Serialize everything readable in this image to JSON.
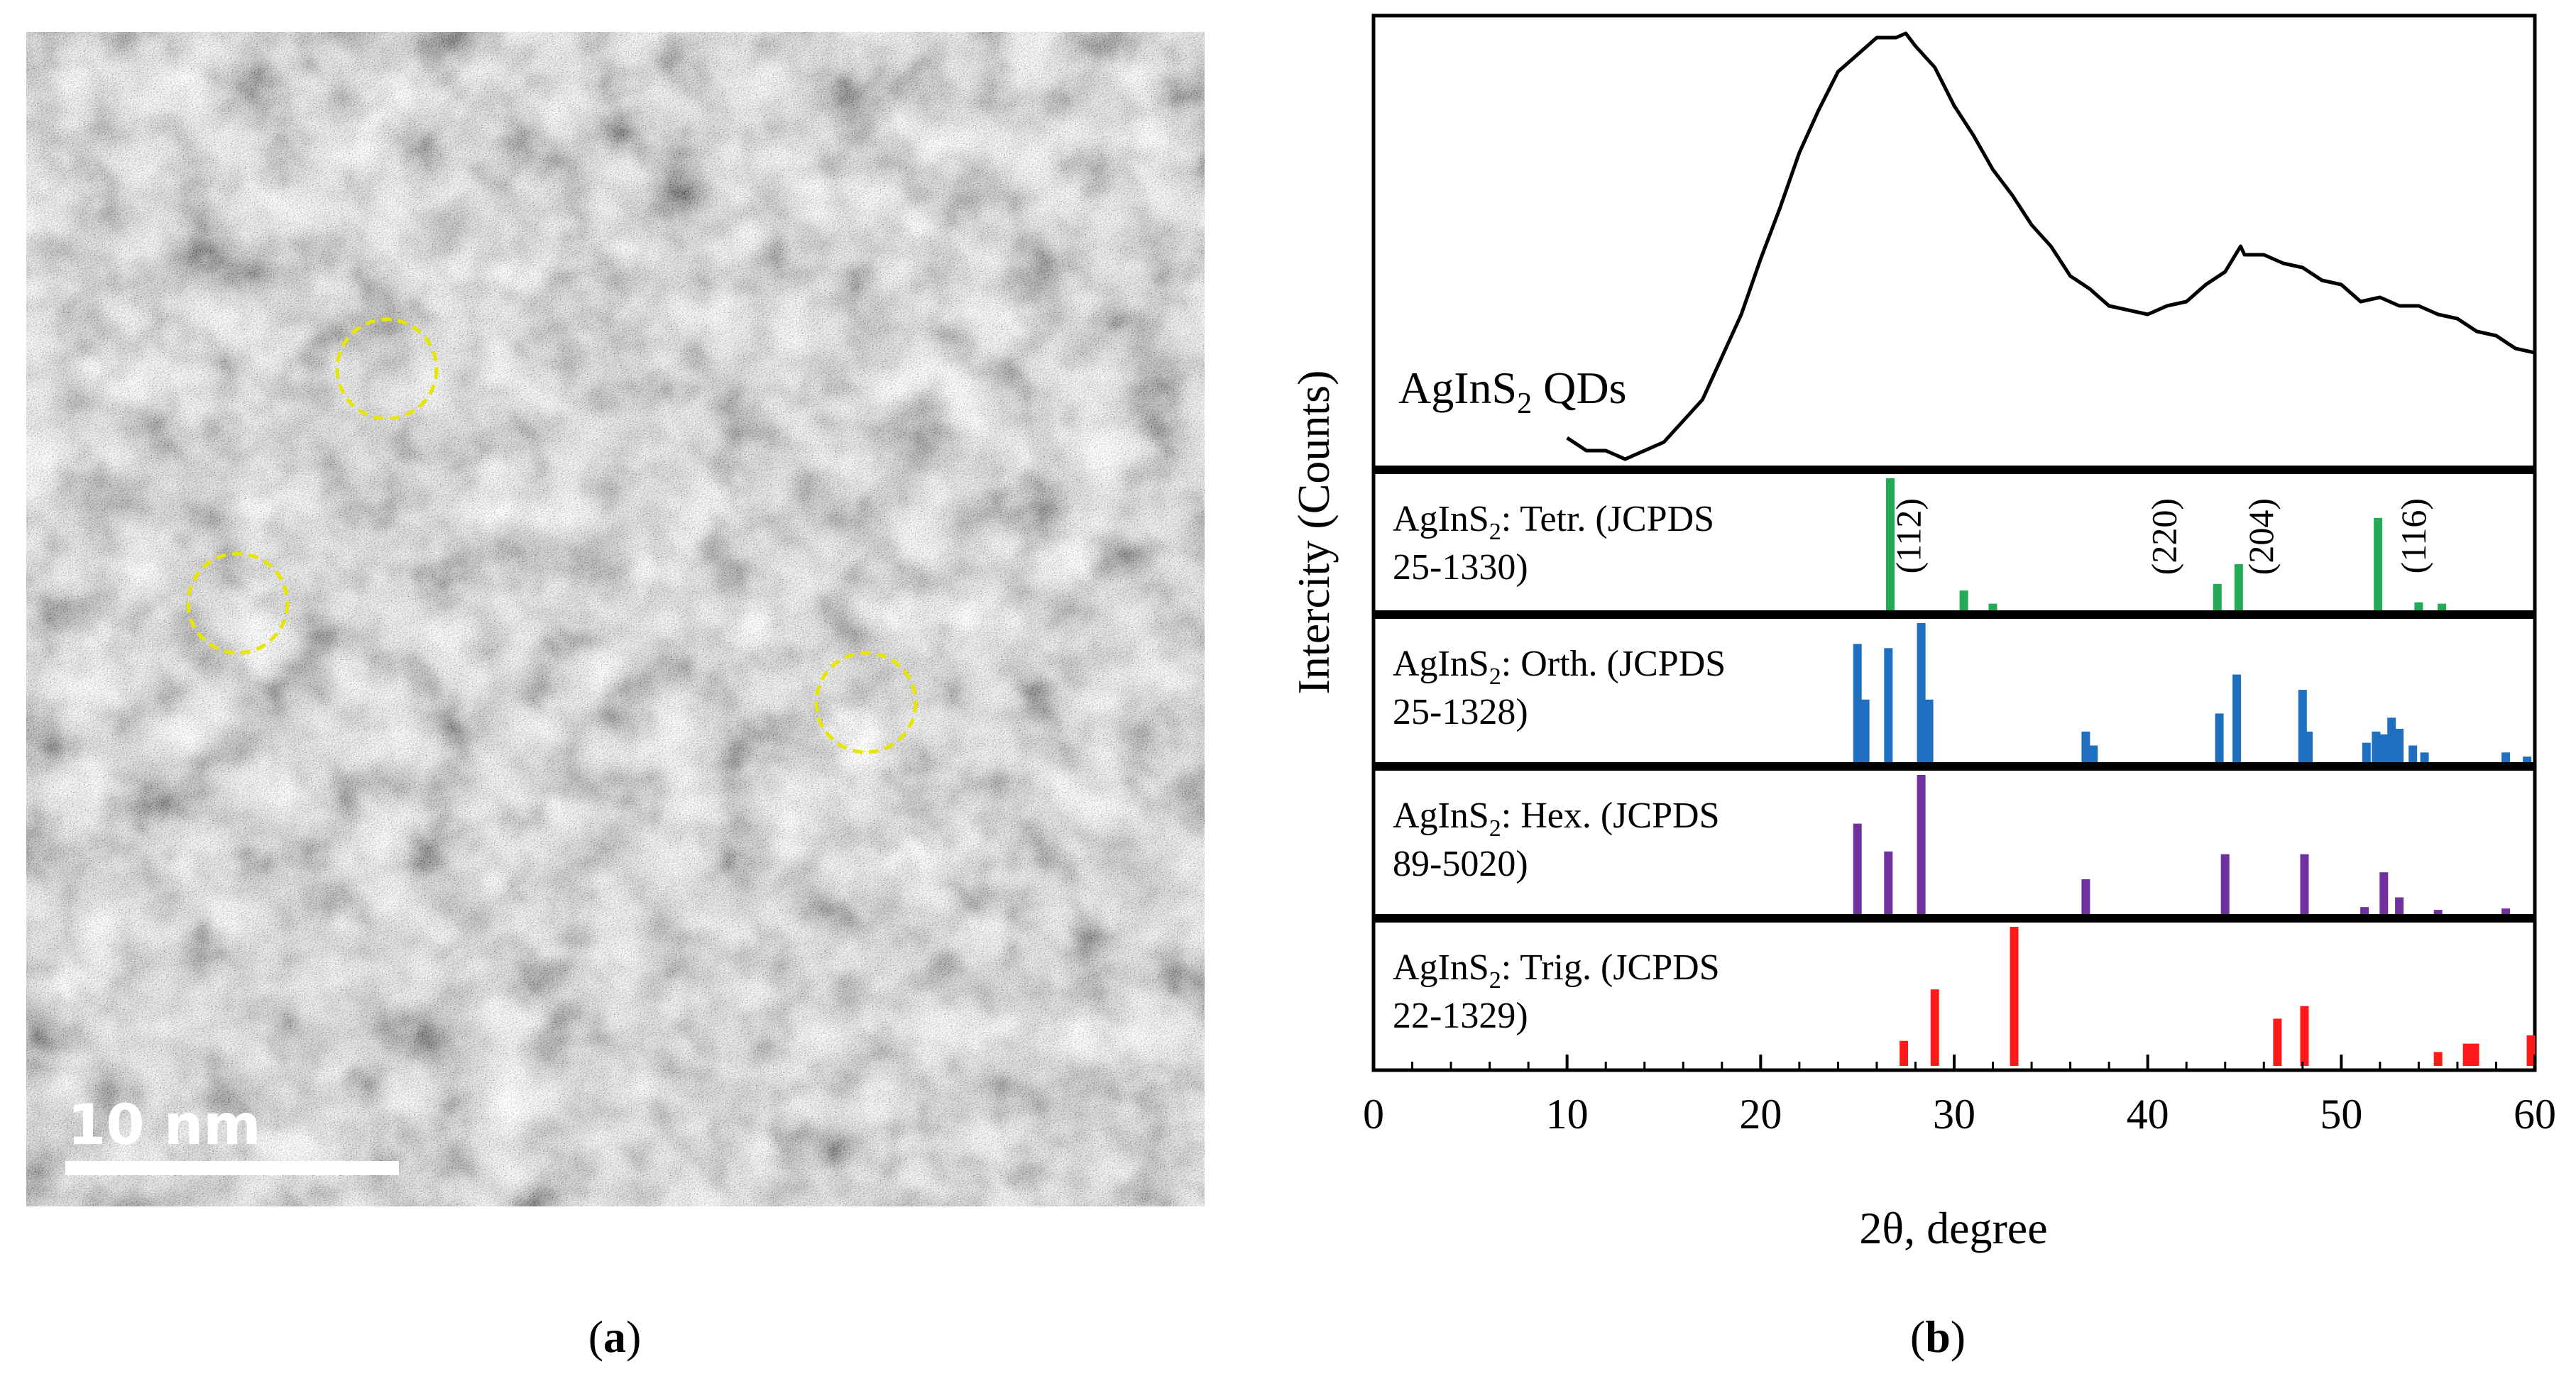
{
  "panel_a": {
    "label_open": "(",
    "label_letter": "a",
    "label_close": ")",
    "scale_bar_text": "10 nm",
    "highlight_color": "#e6e600"
  },
  "panel_b": {
    "label_open": "(",
    "label_letter": "b",
    "label_close": ")"
  },
  "chart_data": {
    "type": "line",
    "x_label": "2θ, degree",
    "y_label": "Intercity (Counts)",
    "xlim": [
      0,
      60
    ],
    "x_ticks": [
      "0",
      "10",
      "20",
      "30",
      "40",
      "50",
      "60"
    ],
    "x_tick_values": [
      0,
      10,
      20,
      30,
      40,
      50,
      60
    ],
    "grid": false,
    "measured": {
      "name_main": "AgInS",
      "name_sub": "2",
      "name_rest": " QDs",
      "color": "#000000",
      "ylim": [
        0,
        1
      ],
      "x": [
        10,
        11,
        12,
        13,
        14,
        15,
        16,
        17,
        18,
        19,
        20,
        21,
        22,
        23,
        24,
        25,
        26,
        27,
        27.5,
        28,
        29,
        30,
        31,
        32,
        33,
        34,
        35,
        36,
        37,
        38,
        39,
        40,
        41,
        42,
        43,
        44,
        44.8,
        45,
        46,
        47,
        48,
        49,
        50,
        51,
        52,
        53,
        54,
        55,
        56,
        57,
        58,
        59,
        60
      ],
      "y": [
        0.05,
        0.03,
        0.02,
        0.01,
        0.02,
        0.05,
        0.09,
        0.15,
        0.24,
        0.35,
        0.47,
        0.6,
        0.72,
        0.83,
        0.91,
        0.96,
        0.99,
        1.0,
        1.0,
        0.98,
        0.92,
        0.84,
        0.76,
        0.69,
        0.62,
        0.56,
        0.5,
        0.44,
        0.4,
        0.37,
        0.35,
        0.35,
        0.36,
        0.38,
        0.41,
        0.45,
        0.5,
        0.49,
        0.48,
        0.47,
        0.45,
        0.43,
        0.41,
        0.38,
        0.38,
        0.37,
        0.36,
        0.35,
        0.33,
        0.31,
        0.29,
        0.27,
        0.25
      ]
    },
    "references": [
      {
        "name_main": "AgInS",
        "name_sub": "2",
        "name_line1_rest": ": Tetr. (JCPDS",
        "name_line2": "25-1330)",
        "color": "#22aa55",
        "ylim": [
          0,
          100
        ],
        "peaks": [
          {
            "x": 26.7,
            "h": 100
          },
          {
            "x": 30.5,
            "h": 15
          },
          {
            "x": 32.0,
            "h": 5
          },
          {
            "x": 43.6,
            "h": 20
          },
          {
            "x": 44.7,
            "h": 35
          },
          {
            "x": 51.9,
            "h": 70
          },
          {
            "x": 54.0,
            "h": 6
          },
          {
            "x": 55.2,
            "h": 5
          }
        ],
        "hkl_labels": [
          {
            "text": "(112)",
            "x": 27.6
          },
          {
            "text": "(220)",
            "x": 40.8
          },
          {
            "text": "(204)",
            "x": 45.8
          },
          {
            "text": "(116)",
            "x": 53.7
          }
        ]
      },
      {
        "name_main": "AgInS",
        "name_sub": "2",
        "name_line1_rest": ": Orth. (JCPDS",
        "name_line2": "25-1328)",
        "color": "#1f6fc0",
        "ylim": [
          0,
          100
        ],
        "peaks": [
          {
            "x": 25.0,
            "h": 85
          },
          {
            "x": 25.4,
            "h": 45
          },
          {
            "x": 26.6,
            "h": 82
          },
          {
            "x": 28.3,
            "h": 100
          },
          {
            "x": 28.7,
            "h": 45
          },
          {
            "x": 36.8,
            "h": 22
          },
          {
            "x": 37.2,
            "h": 12
          },
          {
            "x": 43.7,
            "h": 35
          },
          {
            "x": 44.6,
            "h": 63
          },
          {
            "x": 48.0,
            "h": 52
          },
          {
            "x": 48.3,
            "h": 22
          },
          {
            "x": 51.3,
            "h": 14
          },
          {
            "x": 51.8,
            "h": 22
          },
          {
            "x": 52.2,
            "h": 20
          },
          {
            "x": 52.6,
            "h": 32
          },
          {
            "x": 53.0,
            "h": 24
          },
          {
            "x": 53.7,
            "h": 12
          },
          {
            "x": 54.3,
            "h": 7
          },
          {
            "x": 58.5,
            "h": 7
          },
          {
            "x": 59.6,
            "h": 4
          }
        ]
      },
      {
        "name_main": "AgInS",
        "name_sub": "2",
        "name_line1_rest": ": Hex. (JCPDS",
        "name_line2": "89-5020)",
        "color": "#7030a0",
        "ylim": [
          0,
          100
        ],
        "peaks": [
          {
            "x": 25.0,
            "h": 65
          },
          {
            "x": 26.6,
            "h": 45
          },
          {
            "x": 28.3,
            "h": 100
          },
          {
            "x": 36.8,
            "h": 25
          },
          {
            "x": 44.0,
            "h": 43
          },
          {
            "x": 48.1,
            "h": 43
          },
          {
            "x": 51.2,
            "h": 5
          },
          {
            "x": 52.2,
            "h": 30
          },
          {
            "x": 53.0,
            "h": 12
          },
          {
            "x": 55.0,
            "h": 3
          },
          {
            "x": 58.5,
            "h": 4
          }
        ]
      },
      {
        "name_main": "AgInS",
        "name_sub": "2",
        "name_line1_rest": ": Trig. (JCPDS",
        "name_line2": "22-1329)",
        "color": "#ff1a1a",
        "ylim": [
          0,
          100
        ],
        "peaks": [
          {
            "x": 27.4,
            "h": 18
          },
          {
            "x": 29.0,
            "h": 55
          },
          {
            "x": 33.1,
            "h": 100
          },
          {
            "x": 46.7,
            "h": 34
          },
          {
            "x": 48.1,
            "h": 43
          },
          {
            "x": 55.0,
            "h": 10
          },
          {
            "x": 56.5,
            "h": 16
          },
          {
            "x": 56.9,
            "h": 16
          },
          {
            "x": 59.8,
            "h": 22
          }
        ]
      }
    ]
  }
}
